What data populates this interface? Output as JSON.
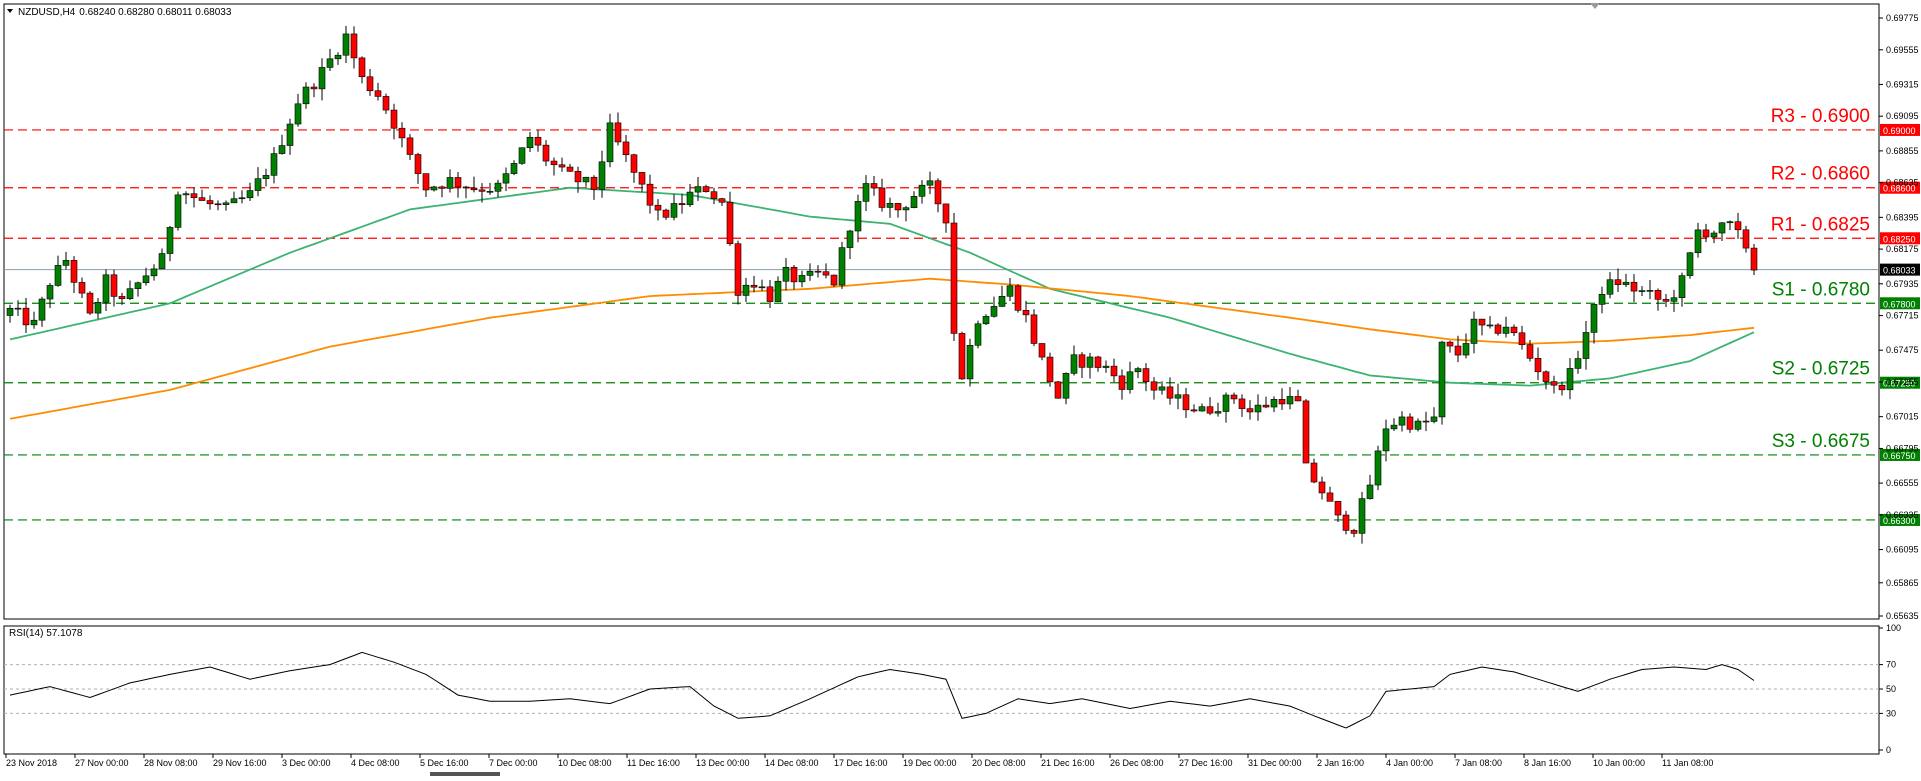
{
  "header": {
    "symbol": "NZDUSD,H4",
    "ohlc": "0.68240 0.68280 0.68011 0.68033"
  },
  "colors": {
    "resistance": "#ff0000",
    "support": "#008000",
    "ema_fast": "#3cb371",
    "ema_slow": "#ff8c00",
    "bull": "#008000",
    "bear": "#ff0000",
    "rsi": "#000000",
    "grid": "#000000"
  },
  "chart_data": [
    {
      "type": "candlestick",
      "title": "NZDUSD,H4 0.68240 0.68280 0.68011 0.68033",
      "ylim": [
        0.65635,
        0.69775
      ],
      "y_ticks": [
        "0.69775",
        "0.69555",
        "0.69315",
        "0.69095",
        "0.68855",
        "0.68635",
        "0.68395",
        "0.68175",
        "0.67935",
        "0.67715",
        "0.67475",
        "0.67255",
        "0.67015",
        "0.66795",
        "0.66555",
        "0.66335",
        "0.66095",
        "0.65865",
        "0.65635"
      ],
      "x_ticks": [
        "23 Nov 2018",
        "27 Nov 00:00",
        "28 Nov 08:00",
        "29 Nov 16:00",
        "3 Dec 00:00",
        "4 Dec 08:00",
        "5 Dec 16:00",
        "7 Dec 00:00",
        "10 Dec 08:00",
        "11 Dec 16:00",
        "13 Dec 00:00",
        "14 Dec 08:00",
        "17 Dec 16:00",
        "19 Dec 00:00",
        "20 Dec 08:00",
        "21 Dec 16:00",
        "26 Dec 08:00",
        "27 Dec 16:00",
        "31 Dec 00:00",
        "2 Jan 16:00",
        "4 Jan 00:00",
        "7 Jan 08:00",
        "8 Jan 16:00",
        "10 Jan 00:00",
        "11 Jan 08:00"
      ],
      "current_price": 0.68033,
      "current_price_label": "0.68033",
      "levels": [
        {
          "name": "R3",
          "value": 0.69,
          "tag": "0.69000",
          "label": "R3 - 0.6900",
          "kind": "resistance"
        },
        {
          "name": "R2",
          "value": 0.686,
          "tag": "0.68600",
          "label": "R2 - 0.6860",
          "kind": "resistance"
        },
        {
          "name": "R1",
          "value": 0.6825,
          "tag": "0.68250",
          "label": "R1 - 0.6825",
          "kind": "resistance"
        },
        {
          "name": "S1",
          "value": 0.678,
          "tag": "0.67800",
          "label": "S1 - 0.6780",
          "kind": "support"
        },
        {
          "name": "S2",
          "value": 0.6725,
          "tag": "0.67250",
          "label": "S2 - 0.6725",
          "kind": "support"
        },
        {
          "name": "S3",
          "value": 0.6675,
          "tag": "0.66750",
          "label": "S3 - 0.6675",
          "kind": "support"
        },
        {
          "name": "",
          "value": 0.663,
          "tag": "0.66300",
          "label": "",
          "kind": "support"
        }
      ],
      "close_anchors": [
        [
          0,
          0.6775
        ],
        [
          3,
          0.6765
        ],
        [
          5,
          0.6795
        ],
        [
          7,
          0.681
        ],
        [
          10,
          0.677
        ],
        [
          12,
          0.6795
        ],
        [
          14,
          0.678
        ],
        [
          17,
          0.68
        ],
        [
          19,
          0.681
        ],
        [
          21,
          0.686
        ],
        [
          24,
          0.685
        ],
        [
          27,
          0.6845
        ],
        [
          30,
          0.6855
        ],
        [
          33,
          0.688
        ],
        [
          36,
          0.692
        ],
        [
          39,
          0.694
        ],
        [
          42,
          0.6965
        ],
        [
          44,
          0.6935
        ],
        [
          46,
          0.6925
        ],
        [
          48,
          0.6905
        ],
        [
          50,
          0.688
        ],
        [
          52,
          0.686
        ],
        [
          55,
          0.6865
        ],
        [
          58,
          0.686
        ],
        [
          61,
          0.686
        ],
        [
          63,
          0.6875
        ],
        [
          65,
          0.6895
        ],
        [
          67,
          0.688
        ],
        [
          69,
          0.687
        ],
        [
          71,
          0.6865
        ],
        [
          73,
          0.686
        ],
        [
          75,
          0.69
        ],
        [
          77,
          0.688
        ],
        [
          79,
          0.686
        ],
        [
          81,
          0.684
        ],
        [
          83,
          0.6845
        ],
        [
          85,
          0.6855
        ],
        [
          87,
          0.686
        ],
        [
          89,
          0.685
        ],
        [
          91,
          0.679
        ],
        [
          93,
          0.6795
        ],
        [
          95,
          0.6785
        ],
        [
          97,
          0.68
        ],
        [
          99,
          0.6795
        ],
        [
          101,
          0.68
        ],
        [
          103,
          0.6795
        ],
        [
          105,
          0.6835
        ],
        [
          107,
          0.686
        ],
        [
          109,
          0.685
        ],
        [
          111,
          0.6845
        ],
        [
          113,
          0.6855
        ],
        [
          115,
          0.686
        ],
        [
          117,
          0.684
        ],
        [
          118,
          0.676
        ],
        [
          119,
          0.673
        ],
        [
          121,
          0.677
        ],
        [
          123,
          0.678
        ],
        [
          125,
          0.679
        ],
        [
          127,
          0.677
        ],
        [
          129,
          0.674
        ],
        [
          131,
          0.6715
        ],
        [
          133,
          0.674
        ],
        [
          135,
          0.674
        ],
        [
          137,
          0.6735
        ],
        [
          139,
          0.6725
        ],
        [
          141,
          0.6735
        ],
        [
          143,
          0.672
        ],
        [
          145,
          0.6715
        ],
        [
          147,
          0.671
        ],
        [
          149,
          0.6705
        ],
        [
          151,
          0.671
        ],
        [
          153,
          0.6715
        ],
        [
          155,
          0.6705
        ],
        [
          157,
          0.671
        ],
        [
          159,
          0.6715
        ],
        [
          161,
          0.671
        ],
        [
          162,
          0.6665
        ],
        [
          164,
          0.665
        ],
        [
          166,
          0.663
        ],
        [
          168,
          0.6625
        ],
        [
          170,
          0.6655
        ],
        [
          172,
          0.6695
        ],
        [
          174,
          0.67
        ],
        [
          176,
          0.6695
        ],
        [
          178,
          0.67
        ],
        [
          179,
          0.675
        ],
        [
          181,
          0.6745
        ],
        [
          183,
          0.6765
        ],
        [
          185,
          0.676
        ],
        [
          187,
          0.6765
        ],
        [
          189,
          0.675
        ],
        [
          191,
          0.6735
        ],
        [
          193,
          0.672
        ],
        [
          195,
          0.673
        ],
        [
          197,
          0.676
        ],
        [
          199,
          0.679
        ],
        [
          201,
          0.6795
        ],
        [
          203,
          0.679
        ],
        [
          205,
          0.6785
        ],
        [
          207,
          0.678
        ],
        [
          209,
          0.6795
        ],
        [
          211,
          0.683
        ],
        [
          213,
          0.683
        ],
        [
          215,
          0.6833
        ],
        [
          217,
          0.682
        ],
        [
          218,
          0.6803
        ]
      ],
      "series": [
        {
          "name": "",
          "color_key": "ema_fast",
          "points": [
            [
              0,
              0.6755
            ],
            [
              20,
              0.678
            ],
            [
              35,
              0.6815
            ],
            [
              50,
              0.6845
            ],
            [
              70,
              0.686
            ],
            [
              85,
              0.6855
            ],
            [
              100,
              0.684
            ],
            [
              110,
              0.6835
            ],
            [
              120,
              0.6815
            ],
            [
              130,
              0.679
            ],
            [
              145,
              0.677
            ],
            [
              160,
              0.6745
            ],
            [
              170,
              0.673
            ],
            [
              180,
              0.6725
            ],
            [
              190,
              0.6723
            ],
            [
              200,
              0.6728
            ],
            [
              210,
              0.674
            ],
            [
              218,
              0.676
            ]
          ]
        },
        {
          "name": "",
          "color_key": "ema_slow",
          "points": [
            [
              0,
              0.67
            ],
            [
              20,
              0.672
            ],
            [
              40,
              0.675
            ],
            [
              60,
              0.677
            ],
            [
              80,
              0.6785
            ],
            [
              100,
              0.679
            ],
            [
              115,
              0.6797
            ],
            [
              125,
              0.6793
            ],
            [
              140,
              0.6785
            ],
            [
              160,
              0.677
            ],
            [
              170,
              0.6762
            ],
            [
              180,
              0.6755
            ],
            [
              190,
              0.6752
            ],
            [
              200,
              0.6754
            ],
            [
              210,
              0.6758
            ],
            [
              218,
              0.6763
            ]
          ]
        }
      ]
    },
    {
      "type": "line",
      "title": "RSI(14) 57.1078",
      "ylim": [
        0,
        100
      ],
      "y_ticks": [
        "100",
        "70",
        "50",
        "30",
        "0"
      ],
      "levels": [
        70,
        50,
        30
      ],
      "rsi_anchors": [
        [
          0,
          45
        ],
        [
          5,
          52
        ],
        [
          10,
          43
        ],
        [
          15,
          55
        ],
        [
          20,
          62
        ],
        [
          25,
          68
        ],
        [
          30,
          58
        ],
        [
          35,
          65
        ],
        [
          40,
          70
        ],
        [
          44,
          80
        ],
        [
          48,
          72
        ],
        [
          52,
          62
        ],
        [
          56,
          45
        ],
        [
          60,
          40
        ],
        [
          65,
          40
        ],
        [
          70,
          42
        ],
        [
          75,
          38
        ],
        [
          80,
          50
        ],
        [
          85,
          52
        ],
        [
          88,
          36
        ],
        [
          91,
          26
        ],
        [
          95,
          28
        ],
        [
          100,
          42
        ],
        [
          106,
          60
        ],
        [
          110,
          66
        ],
        [
          114,
          62
        ],
        [
          117,
          58
        ],
        [
          119,
          26
        ],
        [
          122,
          30
        ],
        [
          126,
          42
        ],
        [
          130,
          38
        ],
        [
          134,
          42
        ],
        [
          140,
          34
        ],
        [
          145,
          40
        ],
        [
          150,
          36
        ],
        [
          155,
          42
        ],
        [
          160,
          36
        ],
        [
          163,
          28
        ],
        [
          167,
          18
        ],
        [
          170,
          28
        ],
        [
          172,
          48
        ],
        [
          178,
          52
        ],
        [
          180,
          62
        ],
        [
          184,
          68
        ],
        [
          188,
          64
        ],
        [
          192,
          56
        ],
        [
          196,
          48
        ],
        [
          200,
          58
        ],
        [
          204,
          66
        ],
        [
          208,
          68
        ],
        [
          212,
          66
        ],
        [
          214,
          70
        ],
        [
          216,
          66
        ],
        [
          218,
          57
        ]
      ]
    }
  ]
}
